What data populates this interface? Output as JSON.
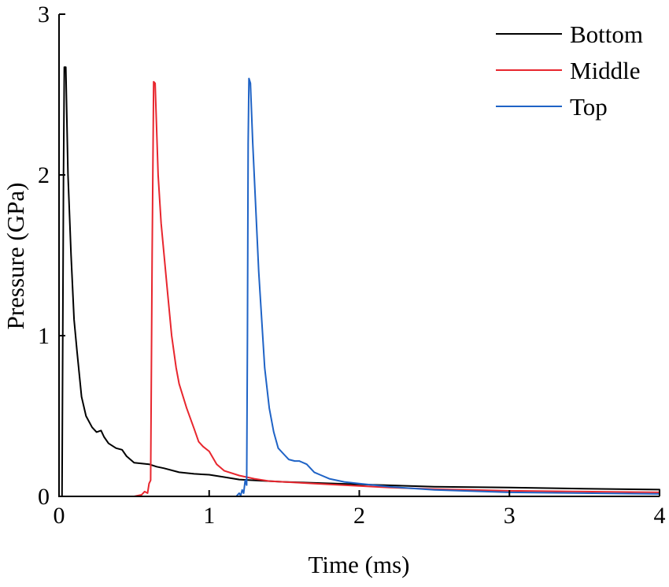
{
  "chart_data": {
    "type": "line",
    "xlabel": "Time (ms)",
    "ylabel": "Pressure (GPa)",
    "xlim": [
      0,
      4
    ],
    "ylim": [
      0,
      3
    ],
    "xticks": [
      0,
      1,
      2,
      3,
      4
    ],
    "yticks": [
      0,
      1,
      2,
      3
    ],
    "grid": false,
    "legend_position": "top-right",
    "series": [
      {
        "name": "Bottom",
        "color": "#000000",
        "points": [
          [
            0.0,
            0.0
          ],
          [
            0.02,
            0.0
          ],
          [
            0.03,
            2.0
          ],
          [
            0.035,
            2.67
          ],
          [
            0.045,
            2.67
          ],
          [
            0.06,
            2.0
          ],
          [
            0.08,
            1.5
          ],
          [
            0.1,
            1.1
          ],
          [
            0.12,
            0.9
          ],
          [
            0.15,
            0.62
          ],
          [
            0.18,
            0.5
          ],
          [
            0.22,
            0.43
          ],
          [
            0.25,
            0.4
          ],
          [
            0.28,
            0.41
          ],
          [
            0.3,
            0.37
          ],
          [
            0.33,
            0.33
          ],
          [
            0.38,
            0.3
          ],
          [
            0.42,
            0.29
          ],
          [
            0.45,
            0.25
          ],
          [
            0.5,
            0.21
          ],
          [
            0.55,
            0.205
          ],
          [
            0.6,
            0.2
          ],
          [
            0.65,
            0.185
          ],
          [
            0.7,
            0.175
          ],
          [
            0.8,
            0.15
          ],
          [
            0.9,
            0.14
          ],
          [
            1.0,
            0.135
          ],
          [
            1.1,
            0.12
          ],
          [
            1.2,
            0.105
          ],
          [
            1.3,
            0.1
          ],
          [
            1.5,
            0.09
          ],
          [
            2.0,
            0.075
          ],
          [
            2.5,
            0.06
          ],
          [
            3.0,
            0.055
          ],
          [
            3.5,
            0.048
          ],
          [
            4.0,
            0.042
          ]
        ]
      },
      {
        "name": "Middle",
        "color": "#e8262e",
        "points": [
          [
            0.3,
            0.0
          ],
          [
            0.5,
            0.0
          ],
          [
            0.55,
            0.01
          ],
          [
            0.57,
            0.03
          ],
          [
            0.59,
            0.02
          ],
          [
            0.6,
            0.08
          ],
          [
            0.61,
            0.1
          ],
          [
            0.62,
            1.5
          ],
          [
            0.63,
            2.58
          ],
          [
            0.64,
            2.57
          ],
          [
            0.66,
            2.0
          ],
          [
            0.68,
            1.7
          ],
          [
            0.7,
            1.5
          ],
          [
            0.72,
            1.3
          ],
          [
            0.75,
            1.0
          ],
          [
            0.78,
            0.8
          ],
          [
            0.8,
            0.7
          ],
          [
            0.85,
            0.55
          ],
          [
            0.9,
            0.42
          ],
          [
            0.93,
            0.34
          ],
          [
            0.96,
            0.31
          ],
          [
            1.0,
            0.28
          ],
          [
            1.05,
            0.2
          ],
          [
            1.1,
            0.16
          ],
          [
            1.2,
            0.13
          ],
          [
            1.3,
            0.11
          ],
          [
            1.4,
            0.095
          ],
          [
            1.5,
            0.09
          ],
          [
            1.7,
            0.08
          ],
          [
            2.0,
            0.065
          ],
          [
            2.2,
            0.055
          ],
          [
            2.5,
            0.045
          ],
          [
            3.0,
            0.035
          ],
          [
            3.5,
            0.03
          ],
          [
            4.0,
            0.025
          ]
        ]
      },
      {
        "name": "Top",
        "color": "#1f63c6",
        "points": [
          [
            1.1,
            0.0
          ],
          [
            1.18,
            0.0
          ],
          [
            1.2,
            0.02
          ],
          [
            1.21,
            0.005
          ],
          [
            1.22,
            0.04
          ],
          [
            1.23,
            0.02
          ],
          [
            1.24,
            0.1
          ],
          [
            1.25,
            0.07
          ],
          [
            1.255,
            1.0
          ],
          [
            1.26,
            2.2
          ],
          [
            1.265,
            2.6
          ],
          [
            1.275,
            2.57
          ],
          [
            1.29,
            2.2
          ],
          [
            1.31,
            1.8
          ],
          [
            1.33,
            1.4
          ],
          [
            1.35,
            1.1
          ],
          [
            1.37,
            0.8
          ],
          [
            1.4,
            0.55
          ],
          [
            1.43,
            0.4
          ],
          [
            1.46,
            0.3
          ],
          [
            1.5,
            0.26
          ],
          [
            1.53,
            0.23
          ],
          [
            1.57,
            0.22
          ],
          [
            1.6,
            0.22
          ],
          [
            1.65,
            0.2
          ],
          [
            1.7,
            0.15
          ],
          [
            1.75,
            0.13
          ],
          [
            1.8,
            0.11
          ],
          [
            1.9,
            0.09
          ],
          [
            2.0,
            0.08
          ],
          [
            2.2,
            0.06
          ],
          [
            2.5,
            0.04
          ],
          [
            3.0,
            0.025
          ],
          [
            3.5,
            0.02
          ],
          [
            4.0,
            0.015
          ]
        ]
      }
    ]
  }
}
